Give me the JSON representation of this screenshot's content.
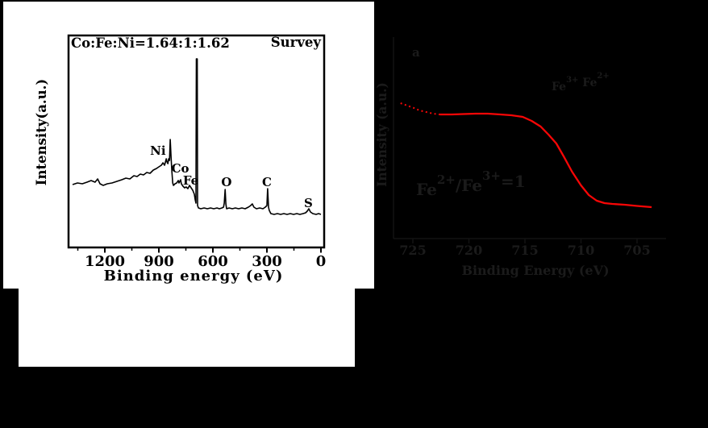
{
  "page": {
    "background_color": "#000000",
    "left_panel_background": "#ffffff"
  },
  "chart_data": [
    {
      "type": "line",
      "title": "Co:Fe:Ni=1.64:1:1.62",
      "annotation": "Survey",
      "xlabel": "Binding energy (eV)",
      "ylabel": "Intensity(a.u.)",
      "x_ticks": [
        1200,
        900,
        600,
        300,
        0
      ],
      "x_minor_ticks": [
        1350,
        1050,
        750,
        450,
        150
      ],
      "xlim": [
        1400,
        0
      ],
      "ylim": [
        0,
        260
      ],
      "axis_reversed": true,
      "grid": false,
      "line_color": "#000000",
      "text_color": "#000000",
      "peak_labels": [
        {
          "label": "Ni",
          "be": 905,
          "i": 115
        },
        {
          "label": "Co",
          "be": 781,
          "i": 93
        },
        {
          "label": "Fe",
          "be": 723,
          "i": 78
        },
        {
          "label": "O",
          "be": 524,
          "i": 76
        },
        {
          "label": "C",
          "be": 300,
          "i": 76
        },
        {
          "label": "S",
          "be": 70,
          "i": 50
        }
      ],
      "points": [
        [
          1379,
          78
        ],
        [
          1352,
          80
        ],
        [
          1325,
          79
        ],
        [
          1299,
          81
        ],
        [
          1276,
          83
        ],
        [
          1254,
          81
        ],
        [
          1240,
          85
        ],
        [
          1227,
          79
        ],
        [
          1209,
          77
        ],
        [
          1186,
          79
        ],
        [
          1160,
          80
        ],
        [
          1133,
          82
        ],
        [
          1106,
          84
        ],
        [
          1083,
          86
        ],
        [
          1061,
          85
        ],
        [
          1039,
          89
        ],
        [
          1021,
          88
        ],
        [
          1003,
          91
        ],
        [
          985,
          90
        ],
        [
          967,
          93
        ],
        [
          949,
          92
        ],
        [
          931,
          96
        ],
        [
          913,
          98
        ],
        [
          900,
          100
        ],
        [
          886,
          102
        ],
        [
          877,
          105
        ],
        [
          868,
          102
        ],
        [
          859,
          110
        ],
        [
          855,
          106
        ],
        [
          850,
          104
        ],
        [
          846,
          110
        ],
        [
          841,
          108
        ],
        [
          837,
          134
        ],
        [
          832,
          111
        ],
        [
          828,
          95
        ],
        [
          823,
          80
        ],
        [
          819,
          77
        ],
        [
          810,
          79
        ],
        [
          801,
          80
        ],
        [
          792,
          83
        ],
        [
          788,
          80
        ],
        [
          779,
          84
        ],
        [
          775,
          79
        ],
        [
          766,
          76
        ],
        [
          757,
          74
        ],
        [
          748,
          75
        ],
        [
          739,
          73
        ],
        [
          730,
          77
        ],
        [
          721,
          74
        ],
        [
          712,
          71
        ],
        [
          703,
          66
        ],
        [
          698,
          59
        ],
        [
          694,
          55
        ],
        [
          692,
          234
        ],
        [
          687,
          234
        ],
        [
          685,
          52
        ],
        [
          680,
          49
        ],
        [
          667,
          48
        ],
        [
          649,
          49
        ],
        [
          631,
          48
        ],
        [
          613,
          49
        ],
        [
          595,
          48
        ],
        [
          577,
          49
        ],
        [
          564,
          48
        ],
        [
          550,
          49
        ],
        [
          541,
          50
        ],
        [
          537,
          55
        ],
        [
          532,
          72
        ],
        [
          528,
          54
        ],
        [
          524,
          48
        ],
        [
          510,
          49
        ],
        [
          492,
          48
        ],
        [
          475,
          49
        ],
        [
          457,
          48
        ],
        [
          439,
          49
        ],
        [
          421,
          48
        ],
        [
          403,
          50
        ],
        [
          390,
          52
        ],
        [
          381,
          54
        ],
        [
          372,
          50
        ],
        [
          358,
          48
        ],
        [
          340,
          49
        ],
        [
          322,
          48
        ],
        [
          309,
          50
        ],
        [
          300,
          52
        ],
        [
          296,
          73
        ],
        [
          291,
          50
        ],
        [
          287,
          46
        ],
        [
          278,
          42
        ],
        [
          260,
          41
        ],
        [
          242,
          42
        ],
        [
          224,
          41
        ],
        [
          206,
          42
        ],
        [
          188,
          41
        ],
        [
          170,
          42
        ],
        [
          152,
          41
        ],
        [
          134,
          42
        ],
        [
          117,
          41
        ],
        [
          99,
          42
        ],
        [
          85,
          43
        ],
        [
          76,
          45
        ],
        [
          67,
          48
        ],
        [
          58,
          44
        ],
        [
          45,
          42
        ],
        [
          27,
          41
        ],
        [
          13,
          42
        ],
        [
          0,
          41
        ]
      ]
    },
    {
      "type": "line",
      "panel_label": "a",
      "xlabel": "Binding Energy (eV)",
      "ylabel": "Intensity (a.u.)",
      "x_ticks": [
        725,
        720,
        715,
        710,
        705
      ],
      "xlim": [
        727,
        703
      ],
      "ylim": [
        0,
        200
      ],
      "axis_reversed": true,
      "grid": false,
      "line_color": "#f80606",
      "text_color": "#1b1b1b",
      "annotations": [
        "Fe3+ Fe2+",
        "Fe2+/Fe3+=1"
      ],
      "peak_label_parts": [
        {
          "t": "Fe"
        },
        {
          "t": "3+",
          "sup": true
        },
        {
          "t": " Fe"
        },
        {
          "t": "2+",
          "sup": true
        }
      ],
      "ratio_label_parts": [
        {
          "t": "Fe"
        },
        {
          "t": "2+",
          "sup": true
        },
        {
          "t": "/Fe"
        },
        {
          "t": "3+",
          "sup": true
        },
        {
          "t": "=1"
        }
      ],
      "dotted_count": 6,
      "points": [
        [
          726.1,
          182
        ],
        [
          725.5,
          179
        ],
        [
          724.9,
          176
        ],
        [
          724.4,
          173
        ],
        [
          723.8,
          171
        ],
        [
          723.2,
          169
        ],
        [
          722.6,
          168
        ],
        [
          721.5,
          168
        ],
        [
          720.5,
          168.5
        ],
        [
          719.4,
          169
        ],
        [
          718.3,
          169
        ],
        [
          717.2,
          168
        ],
        [
          716.2,
          167
        ],
        [
          715.2,
          165
        ],
        [
          714.4,
          160
        ],
        [
          713.6,
          153
        ],
        [
          712.9,
          143
        ],
        [
          712.2,
          132
        ],
        [
          711.5,
          115
        ],
        [
          710.8,
          97
        ],
        [
          710.0,
          80
        ],
        [
          709.3,
          68
        ],
        [
          708.6,
          61
        ],
        [
          707.9,
          58
        ],
        [
          707.2,
          57
        ],
        [
          706.1,
          56
        ],
        [
          705.0,
          54.5
        ],
        [
          703.7,
          53
        ]
      ]
    }
  ]
}
